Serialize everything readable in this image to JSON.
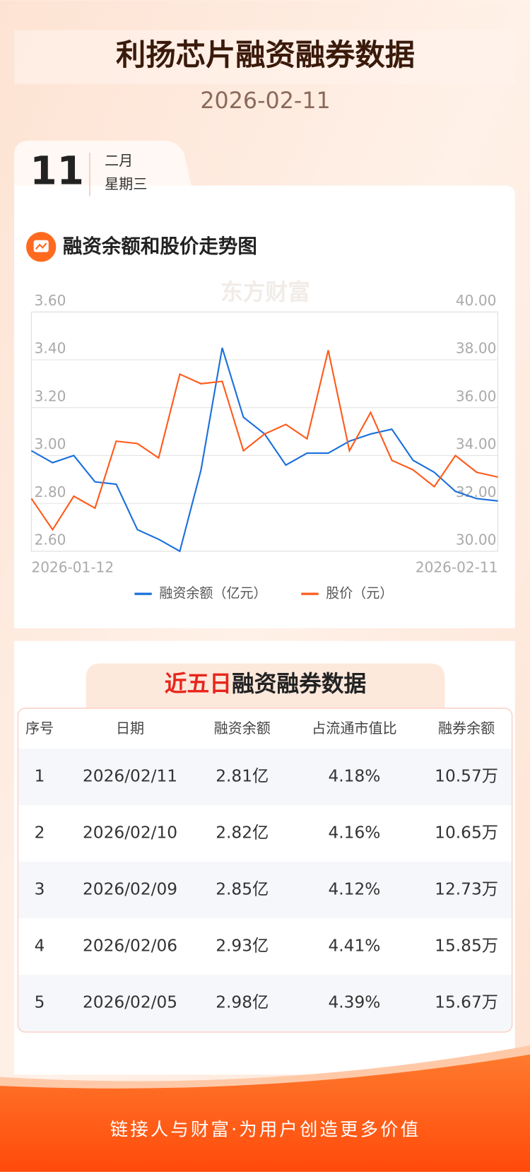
{
  "header": {
    "title": "利扬芯片融资融券数据",
    "date": "2026-02-11"
  },
  "date_card": {
    "day": "11",
    "month": "二月",
    "weekday": "星期三"
  },
  "watermark": "东方财富",
  "chart_section_title": "融资余额和股价走势图",
  "chart_data": {
    "type": "line",
    "categories": [
      "2026-01-12",
      null,
      null,
      null,
      null,
      null,
      null,
      null,
      null,
      null,
      null,
      null,
      null,
      null,
      null,
      null,
      null,
      null,
      null,
      null,
      null,
      null,
      "2026-02-11"
    ],
    "series": [
      {
        "name": "融资余额（亿元）",
        "color": "#1a6fdc",
        "values": [
          3.02,
          2.97,
          3.0,
          2.89,
          2.88,
          2.69,
          2.65,
          2.6,
          2.94,
          3.45,
          3.16,
          3.09,
          2.96,
          3.01,
          3.01,
          3.06,
          3.09,
          3.11,
          2.98,
          2.93,
          2.85,
          2.82,
          2.81
        ]
      },
      {
        "name": "股价（元）",
        "color": "#ff5a1a",
        "axis": "y2",
        "values": [
          32.2,
          30.9,
          32.3,
          31.8,
          34.6,
          34.5,
          33.9,
          37.4,
          37.0,
          37.1,
          34.2,
          34.9,
          35.3,
          34.7,
          38.4,
          34.2,
          35.8,
          33.8,
          33.4,
          32.7,
          34.0,
          33.3,
          33.1
        ]
      }
    ],
    "ylim": [
      2.6,
      3.6
    ],
    "yticks": [
      {
        "value": 2.6,
        "label": "2.60"
      },
      {
        "value": 2.8,
        "label": "2.80"
      },
      {
        "value": 3.0,
        "label": "3.00"
      },
      {
        "value": 3.2,
        "label": "3.20"
      },
      {
        "value": 3.4,
        "label": "3.40"
      },
      {
        "value": 3.6,
        "label": "3.60"
      }
    ],
    "y2lim": [
      30,
      40
    ],
    "y2ticks": [
      {
        "value": 30,
        "label": "30.00"
      },
      {
        "value": 32,
        "label": "32.00"
      },
      {
        "value": 34,
        "label": "34.00"
      },
      {
        "value": 36,
        "label": "36.00"
      },
      {
        "value": 38,
        "label": "38.00"
      },
      {
        "value": 40,
        "label": "40.00"
      }
    ],
    "grid": true
  },
  "table_section": {
    "title_highlight": "近五日",
    "title_rest": "融资融券数据"
  },
  "table": {
    "columns": [
      "序号",
      "日期",
      "融资余额",
      "占流通市值比",
      "融券余额"
    ],
    "rows": [
      [
        "1",
        "2026/02/11",
        "2.81亿",
        "4.18%",
        "10.57万"
      ],
      [
        "2",
        "2026/02/10",
        "2.82亿",
        "4.16%",
        "10.65万"
      ],
      [
        "3",
        "2026/02/09",
        "2.85亿",
        "4.12%",
        "12.73万"
      ],
      [
        "4",
        "2026/02/06",
        "2.93亿",
        "4.41%",
        "15.85万"
      ],
      [
        "5",
        "2026/02/05",
        "2.98亿",
        "4.39%",
        "15.67万"
      ]
    ]
  },
  "footer": {
    "slogan": "链接人与财富·为用户创造更多价值"
  }
}
